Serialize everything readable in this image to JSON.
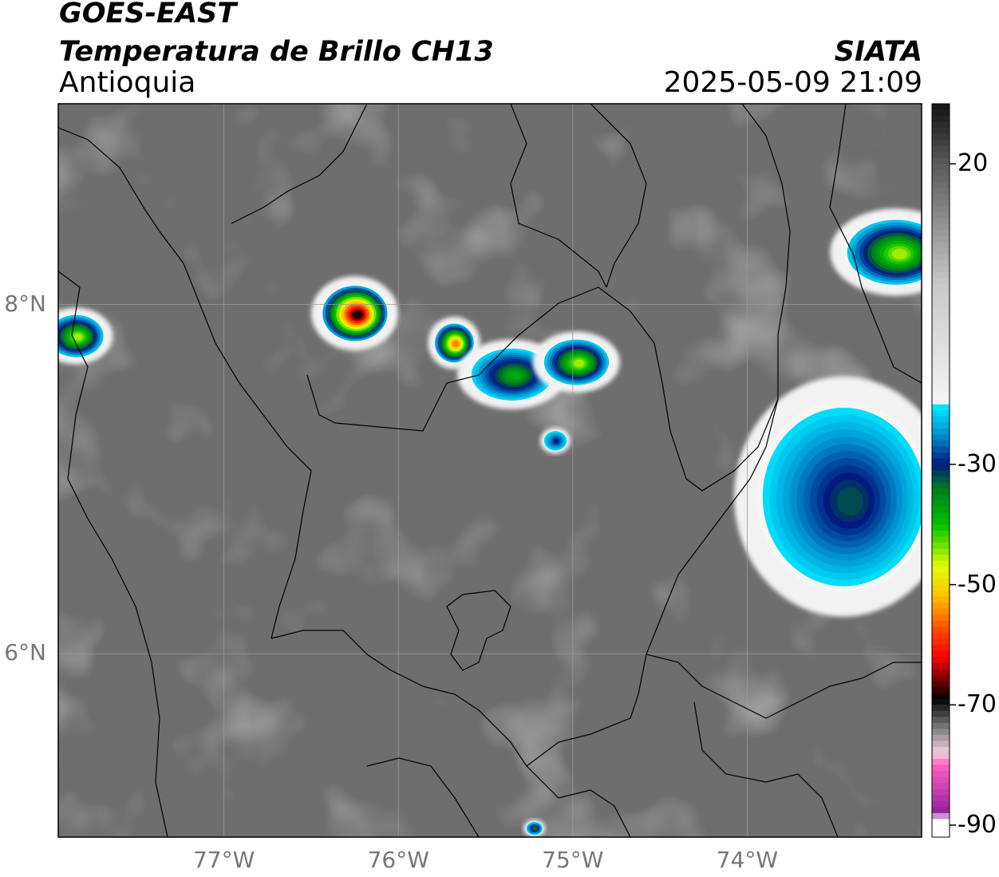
{
  "header": {
    "satellite": "GOES-EAST",
    "product": "Temperatura de Brillo CH13",
    "region": "Antioquia",
    "institution": "SIATA",
    "datetime": "2025-05-09 21:09"
  },
  "map": {
    "lon_range": [
      -77.95,
      -73.0
    ],
    "lat_range": [
      4.95,
      9.15
    ],
    "lon_ticks": [
      {
        "value": -77,
        "label": "77°W"
      },
      {
        "value": -76,
        "label": "76°W"
      },
      {
        "value": -75,
        "label": "75°W"
      },
      {
        "value": -74,
        "label": "74°W"
      }
    ],
    "lat_ticks": [
      {
        "value": 8,
        "label": "8°N"
      },
      {
        "value": 6,
        "label": "6°N"
      }
    ],
    "gridlines": true,
    "basemap_color": "#6e6e6e",
    "border_color": "#000000"
  },
  "colorbar": {
    "range": [
      -92,
      30
    ],
    "ticks": [
      {
        "value": 20,
        "label": "20"
      },
      {
        "value": -30,
        "label": "-30"
      },
      {
        "value": -50,
        "label": "-50"
      },
      {
        "value": -70,
        "label": "-70"
      },
      {
        "value": -90,
        "label": "-90"
      }
    ],
    "stops": [
      {
        "value": 30,
        "color": "#111111"
      },
      {
        "value": 20,
        "color": "#5a5a5a"
      },
      {
        "value": 0,
        "color": "#c8c8c8"
      },
      {
        "value": -20,
        "color": "#f5f5f5"
      },
      {
        "value": -20.5,
        "color": "#00e5ff"
      },
      {
        "value": -25,
        "color": "#0090d0"
      },
      {
        "value": -30,
        "color": "#001a80"
      },
      {
        "value": -34,
        "color": "#007a20"
      },
      {
        "value": -40,
        "color": "#00c000"
      },
      {
        "value": -47,
        "color": "#e0ff00"
      },
      {
        "value": -52,
        "color": "#ffc000"
      },
      {
        "value": -58,
        "color": "#ff4000"
      },
      {
        "value": -62,
        "color": "#ff0000"
      },
      {
        "value": -66,
        "color": "#700000"
      },
      {
        "value": -69,
        "color": "#000000"
      },
      {
        "value": -74,
        "color": "#808080"
      },
      {
        "value": -78,
        "color": "#f0d0e0"
      },
      {
        "value": -80,
        "color": "#ff60c0"
      },
      {
        "value": -88,
        "color": "#9020a0"
      },
      {
        "value": -89,
        "color": "#ffffff"
      }
    ]
  },
  "cloud_cells": [
    {
      "name": "cell-west-edge",
      "lon": -77.85,
      "lat": 7.82,
      "rx": 0.17,
      "ry": 0.13,
      "core_temp": -45
    },
    {
      "name": "cell-urabá",
      "lon": -76.25,
      "lat": 7.95,
      "rx": 0.2,
      "ry": 0.17,
      "core_temp": -68
    },
    {
      "name": "cell-central-1",
      "lon": -75.68,
      "lat": 7.78,
      "rx": 0.12,
      "ry": 0.12,
      "core_temp": -55
    },
    {
      "name": "cell-central-2",
      "lon": -75.35,
      "lat": 7.6,
      "rx": 0.25,
      "ry": 0.16,
      "core_temp": -38
    },
    {
      "name": "cell-central-3",
      "lon": -74.98,
      "lat": 7.67,
      "rx": 0.2,
      "ry": 0.14,
      "core_temp": -45
    },
    {
      "name": "cell-small",
      "lon": -75.1,
      "lat": 7.22,
      "rx": 0.07,
      "ry": 0.06,
      "core_temp": -30
    },
    {
      "name": "cell-northeast",
      "lon": -73.15,
      "lat": 8.3,
      "rx": 0.3,
      "ry": 0.2,
      "core_temp": -45
    },
    {
      "name": "cell-east-large",
      "lon": -73.45,
      "lat": 6.9,
      "rx": 0.5,
      "ry": 0.55,
      "core_temp": -32
    },
    {
      "name": "cell-south",
      "lon": -75.22,
      "lat": 5.0,
      "rx": 0.05,
      "ry": 0.04,
      "core_temp": -35
    }
  ]
}
